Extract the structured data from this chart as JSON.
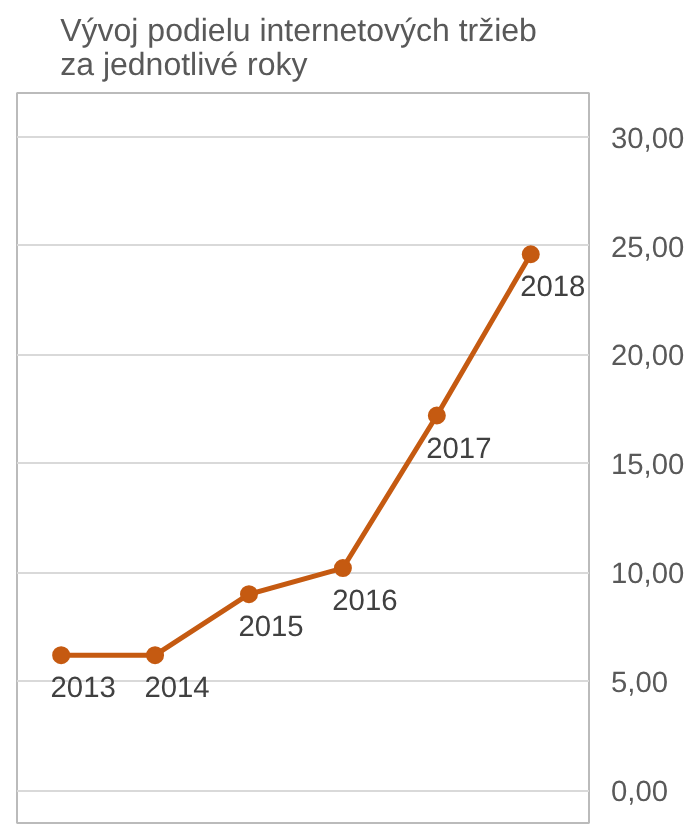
{
  "chart_data": {
    "type": "line",
    "title": "Vývoj podielu  internetových tržieb\nza jednotlivé  roky",
    "categories": [
      "2013",
      "2014",
      "2015",
      "2016",
      "2017",
      "2018"
    ],
    "series": [
      {
        "color": "#c55a11",
        "values": [
          6.2,
          6.2,
          9.0,
          10.2,
          17.2,
          24.6
        ]
      }
    ],
    "ylim": [
      -1.5,
      32
    ],
    "yticks": [
      {
        "value": 0,
        "label": "0,00"
      },
      {
        "value": 5,
        "label": "5,00"
      },
      {
        "value": 10,
        "label": "10,00"
      },
      {
        "value": 15,
        "label": "15,00"
      },
      {
        "value": 20,
        "label": "20,00"
      },
      {
        "value": 25,
        "label": "25,00"
      },
      {
        "value": 30,
        "label": "30,00"
      }
    ],
    "grid": "y",
    "marker": "circle",
    "line_style": "solid",
    "tick_labels": "y"
  }
}
